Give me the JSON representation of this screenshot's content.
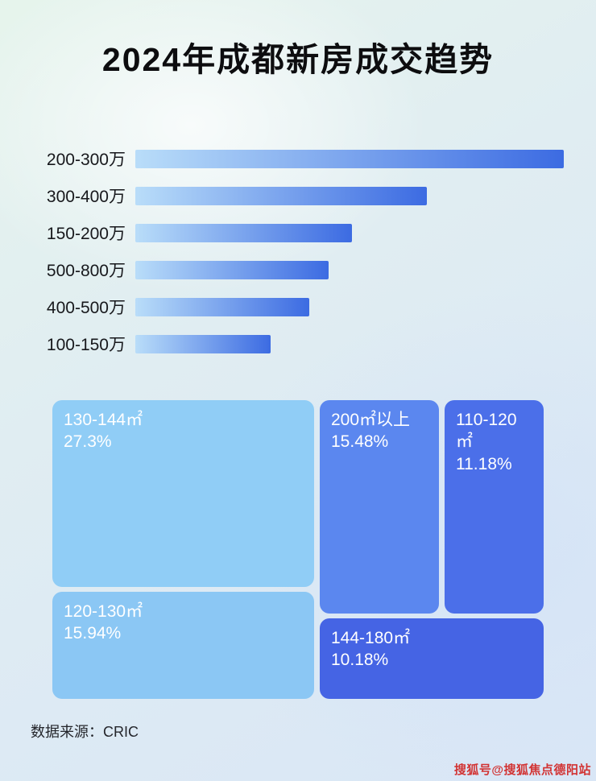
{
  "title": "2024年成都新房成交趋势",
  "chart_data": [
    {
      "type": "bar",
      "orientation": "horizontal",
      "title": "2024年成都新房成交趋势",
      "categories": [
        "200-300万",
        "300-400万",
        "150-200万",
        "500-800万",
        "400-500万",
        "100-150万"
      ],
      "values": [
        100,
        68,
        50.5,
        45.2,
        40.6,
        31.5
      ],
      "value_note": "relative bar length, percent of longest bar (no numeric axis shown)",
      "xlabel": "",
      "ylabel": "",
      "grid": false,
      "legend": false,
      "bar_gradient": {
        "from": "#bádef9",
        "to": "#3c6be2"
      }
    },
    {
      "type": "treemap",
      "items": [
        {
          "label": "130-144㎡",
          "value": "27.3%",
          "color": "#90cdf6"
        },
        {
          "label": "200㎡以上",
          "value": "15.48%",
          "color": "#5b87ef"
        },
        {
          "label": "110-120㎡",
          "value": "11.18%",
          "color": "#4b6fe9"
        },
        {
          "label": "120-130㎡",
          "value": "15.94%",
          "color": "#8bc7f4"
        },
        {
          "label": "144-180㎡",
          "value": "10.18%",
          "color": "#4564e4"
        }
      ]
    }
  ],
  "footer": {
    "source": "数据来源：CRIC"
  },
  "watermark": "搜狐号@搜狐焦点德阳站",
  "colors": {
    "bar_gradient_from": "#b9ddf9",
    "bar_gradient_to": "#3c6be2",
    "title_color": "#0d0d0f",
    "watermark_red": "#d23434"
  }
}
